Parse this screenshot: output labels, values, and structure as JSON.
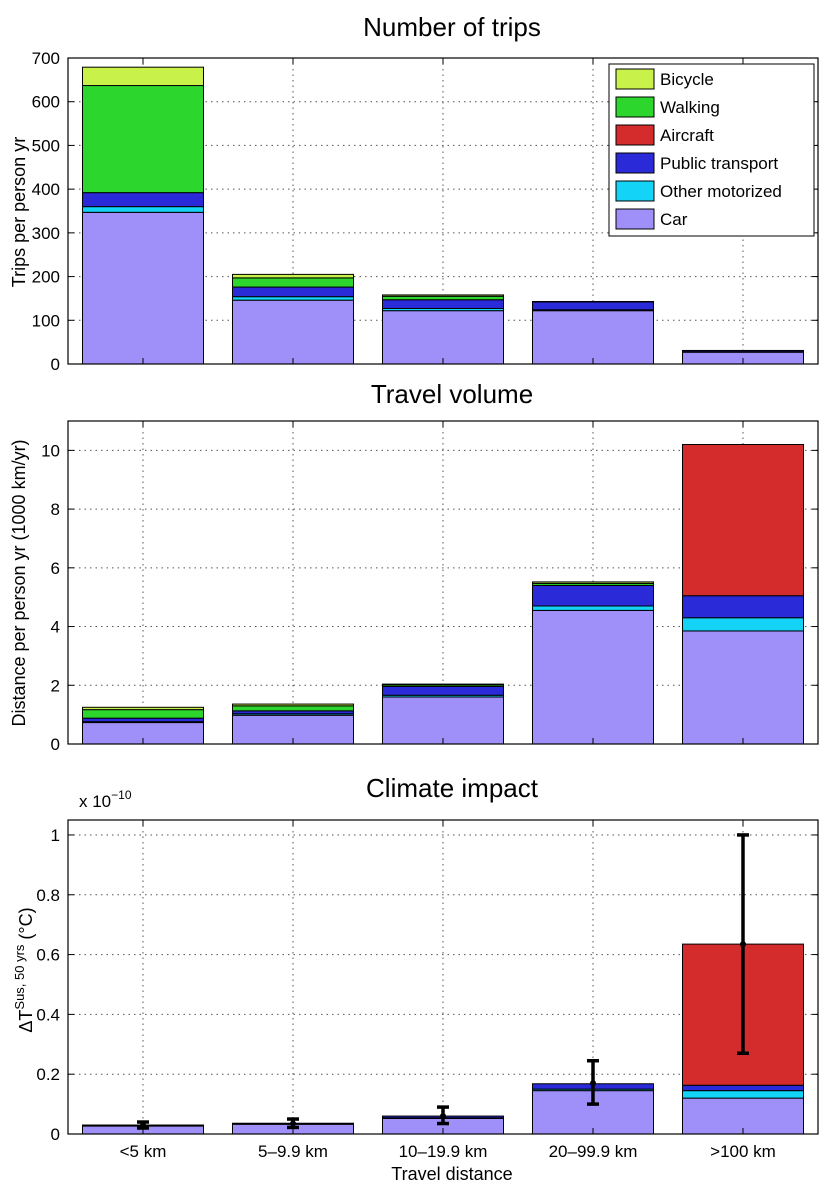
{
  "chart_data": [
    {
      "type": "bar",
      "stacked": true,
      "title": "Number of trips",
      "ylabel": "Trips per person yr",
      "ylim": [
        0,
        700
      ],
      "yticks": [
        "0",
        "100",
        "200",
        "300",
        "400",
        "500",
        "600",
        "700"
      ],
      "grid": true,
      "legend": "top-right",
      "categories": [
        "<5 km",
        "5–9.9 km",
        "10–19.9 km",
        "20–99.9 km",
        ">100 km"
      ],
      "series": [
        {
          "name": "Car",
          "color": "#9f8ff9",
          "values": [
            347,
            146,
            122,
            122,
            27
          ]
        },
        {
          "name": "Other motorized",
          "color": "#13d3f6",
          "values": [
            13,
            8,
            5,
            2,
            0
          ]
        },
        {
          "name": "Public transport",
          "color": "#2a2ad8",
          "values": [
            32,
            22,
            20,
            18,
            3
          ]
        },
        {
          "name": "Aircraft",
          "color": "#d42c2c",
          "values": [
            0,
            0,
            0,
            0,
            1
          ]
        },
        {
          "name": "Walking",
          "color": "#2cd62c",
          "values": [
            245,
            21,
            8,
            1,
            0
          ]
        },
        {
          "name": "Bicycle",
          "color": "#c8f24a",
          "values": [
            42,
            8,
            3,
            0,
            0
          ]
        }
      ]
    },
    {
      "type": "bar",
      "stacked": true,
      "title": "Travel volume",
      "ylabel": "Distance per person yr (1000 km/yr)",
      "ylim": [
        0,
        11
      ],
      "yticks": [
        "0",
        "2",
        "4",
        "6",
        "8",
        "10"
      ],
      "grid": true,
      "categories": [
        "<5 km",
        "5–9.9 km",
        "10–19.9 km",
        "20–99.9 km",
        ">100 km"
      ],
      "series": [
        {
          "name": "Car",
          "color": "#9f8ff9",
          "values": [
            0.73,
            0.98,
            1.6,
            4.55,
            3.85
          ]
        },
        {
          "name": "Other motorized",
          "color": "#13d3f6",
          "values": [
            0.03,
            0.05,
            0.06,
            0.15,
            0.45
          ]
        },
        {
          "name": "Public transport",
          "color": "#2a2ad8",
          "values": [
            0.12,
            0.1,
            0.3,
            0.7,
            0.75
          ]
        },
        {
          "name": "Aircraft",
          "color": "#d42c2c",
          "values": [
            0,
            0,
            0,
            0,
            5.15
          ]
        },
        {
          "name": "Walking",
          "color": "#2cd62c",
          "values": [
            0.29,
            0.17,
            0.05,
            0.07,
            0
          ]
        },
        {
          "name": "Bicycle",
          "color": "#c8f24a",
          "values": [
            0.08,
            0.06,
            0.03,
            0.05,
            0
          ]
        }
      ]
    },
    {
      "type": "bar",
      "stacked": true,
      "title": "Climate impact",
      "multiplier": "x 10",
      "multiplier_exp": "−10",
      "ylabel_main": "ΔT",
      "ylabel_sup": "Sus, 50 yrs",
      "ylabel_unit": "(°C)",
      "xlabel": "Travel distance",
      "ylim": [
        0,
        1.05
      ],
      "yticks": [
        "0",
        "0.2",
        "0.4",
        "0.6",
        "0.8",
        "1"
      ],
      "grid": true,
      "categories": [
        "<5 km",
        "5–9.9 km",
        "10–19.9 km",
        "20–99.9 km",
        ">100 km"
      ],
      "series": [
        {
          "name": "Car",
          "color": "#9f8ff9",
          "values": [
            0.027,
            0.033,
            0.052,
            0.145,
            0.12
          ]
        },
        {
          "name": "Other motorized",
          "color": "#13d3f6",
          "values": [
            0.001,
            0.001,
            0.002,
            0.005,
            0.025
          ]
        },
        {
          "name": "Public transport",
          "color": "#2a2ad8",
          "values": [
            0.002,
            0.002,
            0.006,
            0.018,
            0.018
          ]
        },
        {
          "name": "Aircraft",
          "color": "#d42c2c",
          "values": [
            0,
            0,
            0,
            0,
            0.472
          ]
        },
        {
          "name": "Walking",
          "color": "#2cd62c",
          "values": [
            0,
            0,
            0,
            0,
            0
          ]
        },
        {
          "name": "Bicycle",
          "color": "#c8f24a",
          "values": [
            0,
            0,
            0,
            0,
            0
          ]
        }
      ],
      "error_bars": [
        {
          "center": 0.03,
          "low": 0.02,
          "high": 0.04
        },
        {
          "center": 0.035,
          "low": 0.022,
          "high": 0.05
        },
        {
          "center": 0.06,
          "low": 0.035,
          "high": 0.09
        },
        {
          "center": 0.17,
          "low": 0.1,
          "high": 0.245
        },
        {
          "center": 0.635,
          "low": 0.27,
          "high": 1.0
        }
      ]
    }
  ],
  "legend_order": [
    "Bicycle",
    "Walking",
    "Aircraft",
    "Public transport",
    "Other motorized",
    "Car"
  ]
}
